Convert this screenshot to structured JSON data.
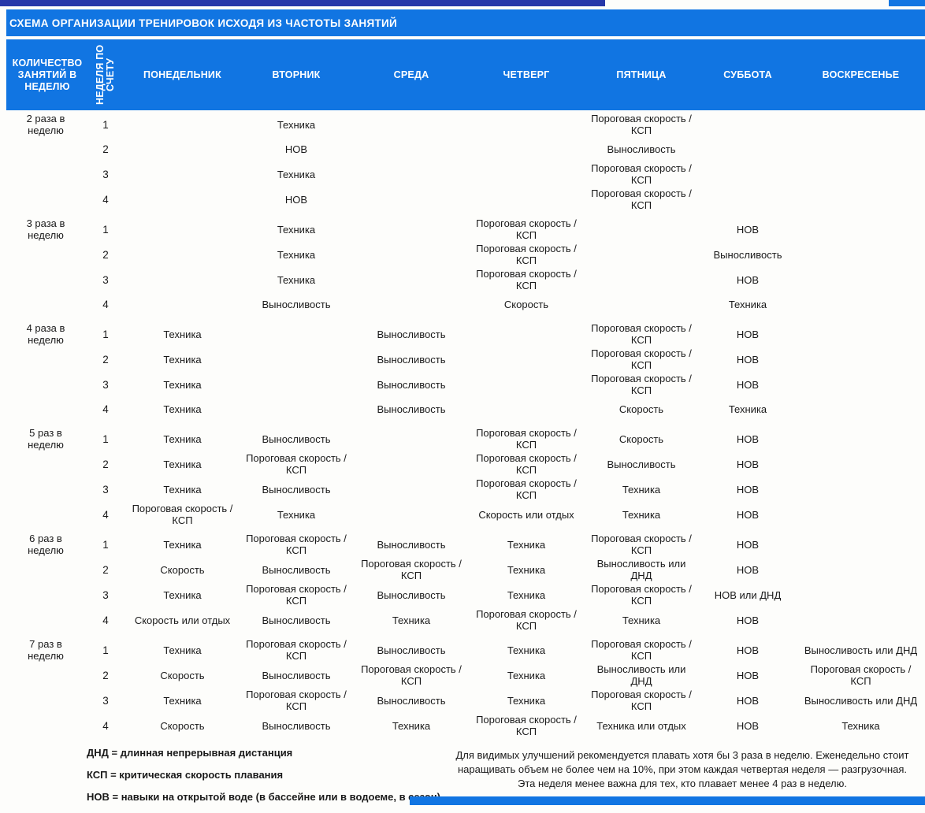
{
  "colors": {
    "banner_blue": "#1175e2",
    "top_strip_navy": "#2637a9",
    "banner_text": "#ffffff",
    "body_text": "#1a1a1a"
  },
  "banner": {
    "title": "СХЕМА ОРГАНИЗАЦИИ ТРЕНИРОВОК ИСХОДЯ ИЗ ЧАСТОТЫ ЗАНЯТИЙ"
  },
  "table": {
    "columns": [
      "КОЛИЧЕСТВО ЗАНЯТИЙ В НЕДЕЛЮ",
      "НЕДЕЛЯ ПО СЧЕТУ",
      "ПОНЕДЕЛЬНИК",
      "ВТОРНИК",
      "СРЕДА",
      "ЧЕТВЕРГ",
      "ПЯТНИЦА",
      "СУББОТА",
      "ВОСКРЕСЕНЬЕ"
    ],
    "groups": [
      {
        "label": "2 раза в неделю",
        "weeks": [
          {
            "num": "1",
            "days": [
              "Техника",
              "",
              "",
              "Пороговая скорость / КСП",
              "",
              ""
            ]
          },
          {
            "num": "2",
            "days": [
              "НОВ",
              "",
              "",
              "Выносливость",
              "",
              ""
            ]
          },
          {
            "num": "3",
            "days": [
              "Техника",
              "",
              "",
              "Пороговая скорость / КСП",
              "",
              ""
            ]
          },
          {
            "num": "4",
            "days": [
              "НОВ",
              "",
              "",
              "Пороговая скорость / КСП",
              "",
              ""
            ]
          }
        ],
        "mon": [
          "",
          "",
          "",
          ""
        ]
      },
      {
        "label": "3 раза в неделю",
        "weeks": [
          {
            "num": "1",
            "days": [
              "Техника",
              "",
              "Пороговая скорость / КСП",
              "",
              "НОВ",
              ""
            ]
          },
          {
            "num": "2",
            "days": [
              "Техника",
              "",
              "Пороговая скорость / КСП",
              "",
              "Выносливость",
              ""
            ]
          },
          {
            "num": "3",
            "days": [
              "Техника",
              "",
              "Пороговая скорость / КСП",
              "",
              "НОВ",
              ""
            ]
          },
          {
            "num": "4",
            "days": [
              "Выносливость",
              "",
              "Скорость",
              "",
              "Техника",
              ""
            ]
          }
        ],
        "mon": [
          "",
          "",
          "",
          ""
        ]
      },
      {
        "label": "4 раза в неделю",
        "weeks": [
          {
            "num": "1",
            "days": [
              "",
              "Выносливость",
              "",
              "Пороговая скорость / КСП",
              "НОВ",
              ""
            ]
          },
          {
            "num": "2",
            "days": [
              "",
              "Выносливость",
              "",
              "Пороговая скорость / КСП",
              "НОВ",
              ""
            ]
          },
          {
            "num": "3",
            "days": [
              "",
              "Выносливость",
              "",
              "Пороговая скорость / КСП",
              "НОВ",
              ""
            ]
          },
          {
            "num": "4",
            "days": [
              "",
              "Выносливость",
              "",
              "Скорость",
              "Техника",
              ""
            ]
          }
        ],
        "mon": [
          "Техника",
          "Техника",
          "Техника",
          "Техника"
        ]
      },
      {
        "label": "5 раз в неделю",
        "weeks": [
          {
            "num": "1",
            "days": [
              "Выносливость",
              "",
              "Пороговая скорость / КСП",
              "Скорость",
              "НОВ",
              ""
            ]
          },
          {
            "num": "2",
            "days": [
              "Пороговая скорость / КСП",
              "",
              "Пороговая скорость / КСП",
              "Выносливость",
              "НОВ",
              ""
            ]
          },
          {
            "num": "3",
            "days": [
              "Выносливость",
              "",
              "Пороговая скорость / КСП",
              "Техника",
              "НОВ",
              ""
            ]
          },
          {
            "num": "4",
            "days": [
              "Техника",
              "",
              "Скорость или отдых",
              "Техника",
              "НОВ",
              ""
            ]
          }
        ],
        "mon": [
          "Техника",
          "Техника",
          "Техника",
          "Пороговая скорость / КСП"
        ]
      },
      {
        "label": "6 раз в неделю",
        "weeks": [
          {
            "num": "1",
            "days": [
              "Пороговая скорость / КСП",
              "Выносливость",
              "Техника",
              "Пороговая скорость / КСП",
              "НОВ",
              ""
            ]
          },
          {
            "num": "2",
            "days": [
              "Выносливость",
              "Пороговая скорость / КСП",
              "Техника",
              "Выносливость или ДНД",
              "НОВ",
              ""
            ]
          },
          {
            "num": "3",
            "days": [
              "Пороговая скорость / КСП",
              "Выносливость",
              "Техника",
              "Пороговая скорость / КСП",
              "НОВ или ДНД",
              ""
            ]
          },
          {
            "num": "4",
            "days": [
              "Выносливость",
              "Техника",
              "Пороговая скорость / КСП",
              "Техника",
              "НОВ",
              ""
            ]
          }
        ],
        "mon": [
          "Техника",
          "Скорость",
          "Техника",
          "Скорость или отдых"
        ]
      },
      {
        "label": "7 раз в неделю",
        "weeks": [
          {
            "num": "1",
            "days": [
              "Пороговая скорость / КСП",
              "Выносливость",
              "Техника",
              "Пороговая скорость / КСП",
              "НОВ",
              "Выносливость или ДНД"
            ]
          },
          {
            "num": "2",
            "days": [
              "Выносливость",
              "Пороговая скорость / КСП",
              "Техника",
              "Выносливость или ДНД",
              "НОВ",
              "Пороговая скорость / КСП"
            ]
          },
          {
            "num": "3",
            "days": [
              "Пороговая скорость / КСП",
              "Выносливость",
              "Техника",
              "Пороговая скорость / КСП",
              "НОВ",
              "Выносливость или ДНД"
            ]
          },
          {
            "num": "4",
            "days": [
              "Выносливость",
              "Техника",
              "Пороговая скорость / КСП",
              "Техника или отдых",
              "НОВ",
              "Техника"
            ]
          }
        ],
        "mon": [
          "Техника",
          "Скорость",
          "Техника",
          "Скорость"
        ]
      }
    ]
  },
  "legend": [
    "ДНД = длинная непрерывная дистанция",
    "КСП = критическая скорость плавания",
    "НОВ = навыки на открытой воде (в бассейне или в водоеме, в сезон)"
  ],
  "note": "Для видимых улучшений рекомендуется плавать хотя бы 3 раза в неделю. Еженедельно стоит наращивать объем не более чем на 10%, при этом каждая четвертая неделя — разгрузочная. Эта неделя менее важна для тех, кто плавает менее 4 раз в неделю."
}
